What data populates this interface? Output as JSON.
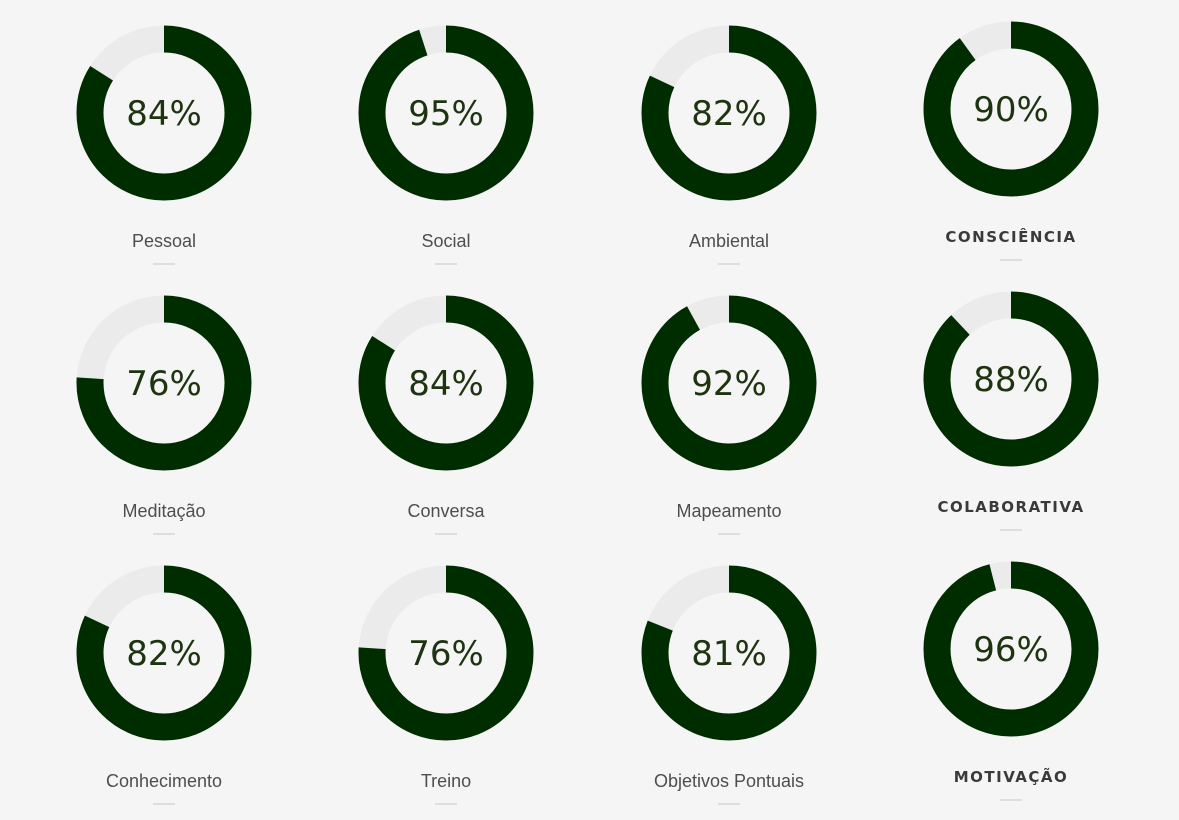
{
  "colors": {
    "ring": "#002d00",
    "track": "#ebebeb",
    "text": "#1e3410",
    "label": "#4e4e4e",
    "background": "#f5f5f5"
  },
  "skills": [
    {
      "label": "Pessoal",
      "value": 84,
      "display": "84%",
      "caps": false
    },
    {
      "label": "Social",
      "value": 95,
      "display": "95%",
      "caps": false
    },
    {
      "label": "Ambiental",
      "value": 82,
      "display": "82%",
      "caps": false
    },
    {
      "label": "CONSCIÊNCIA",
      "value": 90,
      "display": "90%",
      "caps": true
    },
    {
      "label": "Meditação",
      "value": 76,
      "display": "76%",
      "caps": false
    },
    {
      "label": "Conversa",
      "value": 84,
      "display": "84%",
      "caps": false
    },
    {
      "label": "Mapeamento",
      "value": 92,
      "display": "92%",
      "caps": false
    },
    {
      "label": "COLABORATIVA",
      "value": 88,
      "display": "88%",
      "caps": true
    },
    {
      "label": "Conhecimento",
      "value": 82,
      "display": "82%",
      "caps": false
    },
    {
      "label": "Treino",
      "value": 76,
      "display": "76%",
      "caps": false
    },
    {
      "label": "Objetivos Pontuais",
      "value": 81,
      "display": "81%",
      "caps": false
    },
    {
      "label": "MOTIVAÇÃO",
      "value": 96,
      "display": "96%",
      "caps": true
    }
  ]
}
